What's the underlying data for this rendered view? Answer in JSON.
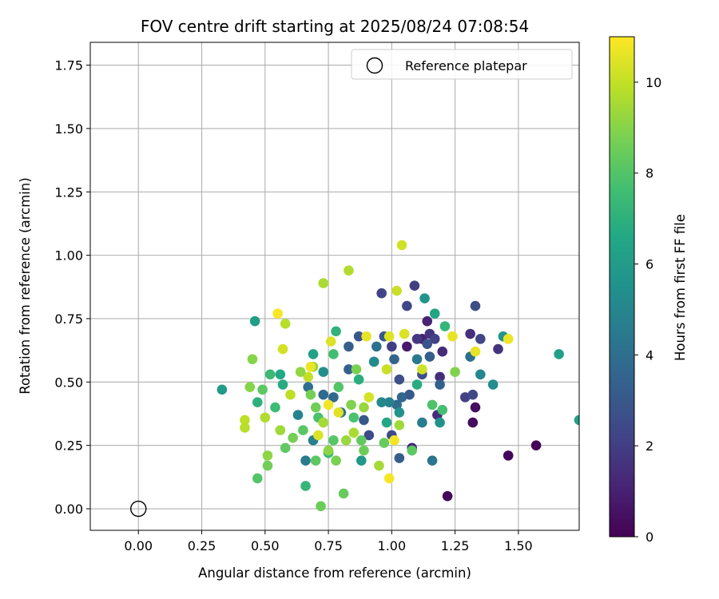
{
  "chart_data": {
    "type": "scatter",
    "title": "FOV centre drift starting at 2025/08/24 07:08:54",
    "xlabel": "Angular distance from reference (arcmin)",
    "ylabel": "Rotation from reference (arcmin)",
    "xlim": [
      -0.19,
      1.74
    ],
    "ylim": [
      -0.085,
      1.84
    ],
    "xticks": [
      "0.00",
      "0.25",
      "0.50",
      "0.75",
      "1.00",
      "1.25",
      "1.50"
    ],
    "xtick_values": [
      0,
      0.25,
      0.5,
      0.75,
      1.0,
      1.25,
      1.5
    ],
    "yticks": [
      "0.00",
      "0.25",
      "0.50",
      "0.75",
      "1.00",
      "1.25",
      "1.50",
      "1.75"
    ],
    "ytick_values": [
      0,
      0.25,
      0.5,
      0.75,
      1.0,
      1.25,
      1.5,
      1.75
    ],
    "grid": true,
    "legend": {
      "location": "top-right",
      "entries": [
        "Reference platepar"
      ]
    },
    "reference_point": {
      "x": 0.0,
      "y": 0.0,
      "marker": "open-circle"
    },
    "colorbar": {
      "label": "Hours from first FF file",
      "colormap": "viridis",
      "range": [
        0,
        11
      ],
      "tick_values": [
        0,
        2,
        4,
        6,
        8,
        10
      ],
      "ticks": [
        "0",
        "2",
        "4",
        "6",
        "8",
        "10"
      ]
    },
    "points": [
      [
        1.57,
        0.25,
        0.1
      ],
      [
        1.46,
        0.21,
        0.2
      ],
      [
        1.22,
        0.05,
        0.2
      ],
      [
        1.32,
        0.34,
        0.3
      ],
      [
        1.33,
        0.4,
        0.4
      ],
      [
        1.06,
        0.64,
        0.8
      ],
      [
        1.12,
        0.67,
        1.0
      ],
      [
        1.14,
        0.74,
        1.1
      ],
      [
        1.08,
        0.24,
        1.2
      ],
      [
        1.2,
        0.62,
        1.3
      ],
      [
        1.18,
        0.37,
        1.4
      ],
      [
        1.19,
        0.52,
        1.4
      ],
      [
        1.31,
        0.69,
        1.5
      ],
      [
        1.42,
        0.63,
        1.6
      ],
      [
        1.15,
        0.69,
        1.7
      ],
      [
        1.1,
        0.67,
        1.8
      ],
      [
        1.0,
        0.64,
        2.0
      ],
      [
        1.09,
        0.88,
        2.0
      ],
      [
        1.17,
        0.67,
        2.1
      ],
      [
        1.29,
        0.44,
        2.1
      ],
      [
        0.96,
        0.85,
        2.2
      ],
      [
        1.06,
        0.8,
        2.3
      ],
      [
        1.35,
        0.67,
        2.3
      ],
      [
        1.32,
        0.45,
        2.4
      ],
      [
        1.0,
        0.29,
        2.5
      ],
      [
        0.91,
        0.29,
        2.5
      ],
      [
        1.33,
        0.8,
        2.6
      ],
      [
        1.03,
        0.51,
        2.7
      ],
      [
        1.12,
        0.53,
        2.7
      ],
      [
        1.14,
        0.65,
        2.8
      ],
      [
        0.87,
        0.68,
        2.9
      ],
      [
        0.89,
        0.35,
        3.0
      ],
      [
        1.07,
        0.45,
        3.0
      ],
      [
        0.97,
        0.68,
        3.1
      ],
      [
        1.03,
        0.2,
        3.2
      ],
      [
        1.15,
        0.6,
        3.2
      ],
      [
        0.83,
        0.64,
        3.3
      ],
      [
        1.19,
        0.49,
        3.4
      ],
      [
        0.83,
        0.55,
        3.4
      ],
      [
        1.01,
        0.59,
        3.5
      ],
      [
        1.04,
        0.44,
        3.6
      ],
      [
        0.77,
        0.44,
        3.7
      ],
      [
        0.73,
        0.45,
        3.8
      ],
      [
        0.93,
        0.58,
        3.8
      ],
      [
        1.02,
        0.41,
        3.9
      ],
      [
        0.67,
        0.48,
        4.0
      ],
      [
        1.31,
        0.6,
        4.0
      ],
      [
        0.94,
        0.64,
        4.1
      ],
      [
        0.8,
        0.38,
        4.2
      ],
      [
        1.16,
        0.19,
        4.3
      ],
      [
        1.1,
        0.59,
        4.4
      ],
      [
        0.66,
        0.19,
        4.5
      ],
      [
        1.12,
        0.34,
        4.6
      ],
      [
        0.69,
        0.27,
        4.7
      ],
      [
        0.99,
        0.42,
        4.8
      ],
      [
        0.63,
        0.37,
        4.9
      ],
      [
        1.35,
        0.53,
        5.0
      ],
      [
        0.96,
        0.42,
        5.1
      ],
      [
        0.93,
        0.58,
        5.2
      ],
      [
        1.4,
        0.49,
        5.3
      ],
      [
        0.73,
        0.54,
        5.4
      ],
      [
        1.19,
        0.34,
        5.5
      ],
      [
        1.03,
        0.38,
        5.6
      ],
      [
        1.13,
        0.83,
        5.7
      ],
      [
        1.44,
        0.68,
        5.8
      ],
      [
        0.88,
        0.19,
        5.9
      ],
      [
        0.33,
        0.47,
        6.0
      ],
      [
        0.46,
        0.74,
        6.1
      ],
      [
        1.66,
        0.61,
        6.2
      ],
      [
        1.74,
        0.35,
        6.2
      ],
      [
        0.69,
        0.61,
        6.3
      ],
      [
        1.17,
        0.77,
        6.4
      ],
      [
        0.98,
        0.34,
        6.5
      ],
      [
        0.56,
        0.53,
        6.6
      ],
      [
        0.57,
        0.49,
        6.7
      ],
      [
        1.1,
        0.49,
        6.8
      ],
      [
        0.87,
        0.51,
        6.9
      ],
      [
        0.47,
        0.42,
        7.0
      ],
      [
        0.78,
        0.7,
        7.1
      ],
      [
        1.21,
        0.72,
        7.2
      ],
      [
        0.66,
        0.09,
        7.2
      ],
      [
        0.75,
        0.22,
        7.3
      ],
      [
        0.52,
        0.53,
        7.4
      ],
      [
        0.54,
        0.4,
        7.5
      ],
      [
        0.77,
        0.61,
        7.6
      ],
      [
        1.2,
        0.39,
        7.7
      ],
      [
        0.71,
        0.36,
        7.8
      ],
      [
        0.85,
        0.36,
        7.8
      ],
      [
        1.16,
        0.41,
        7.9
      ],
      [
        0.47,
        0.12,
        8.0
      ],
      [
        0.65,
        0.31,
        8.1
      ],
      [
        0.7,
        0.19,
        8.2
      ],
      [
        1.08,
        0.23,
        8.2
      ],
      [
        0.88,
        0.27,
        8.3
      ],
      [
        0.81,
        0.06,
        8.4
      ],
      [
        0.72,
        0.01,
        8.5
      ],
      [
        0.51,
        0.17,
        8.6
      ],
      [
        0.61,
        0.28,
        8.7
      ],
      [
        0.78,
        0.19,
        8.8
      ],
      [
        0.84,
        0.41,
        8.9
      ],
      [
        0.45,
        0.59,
        9.0
      ],
      [
        0.51,
        0.21,
        9.1
      ],
      [
        0.69,
        0.56,
        9.2
      ],
      [
        0.82,
        0.27,
        9.3
      ],
      [
        0.56,
        0.31,
        9.4
      ],
      [
        0.95,
        0.17,
        9.5
      ],
      [
        0.73,
        0.89,
        9.6
      ],
      [
        0.83,
        0.94,
        9.7
      ],
      [
        0.58,
        0.73,
        9.8
      ],
      [
        0.42,
        0.35,
        9.9
      ],
      [
        0.67,
        0.52,
        10.0
      ],
      [
        1.02,
        0.86,
        10.1
      ],
      [
        1.04,
        1.04,
        10.2
      ],
      [
        0.57,
        0.63,
        10.3
      ],
      [
        0.76,
        0.66,
        10.4
      ],
      [
        0.99,
        0.68,
        10.5
      ],
      [
        1.33,
        0.62,
        10.6
      ],
      [
        1.46,
        0.67,
        10.7
      ],
      [
        1.01,
        0.27,
        10.8
      ],
      [
        0.99,
        0.12,
        10.9
      ],
      [
        0.55,
        0.77,
        10.9
      ],
      [
        0.75,
        0.41,
        10.8
      ],
      [
        0.68,
        0.56,
        10.7
      ],
      [
        0.9,
        0.68,
        10.6
      ],
      [
        1.24,
        0.68,
        10.6
      ],
      [
        0.79,
        0.38,
        10.5
      ],
      [
        1.05,
        0.69,
        10.4
      ],
      [
        0.71,
        0.29,
        10.4
      ],
      [
        0.91,
        0.44,
        10.3
      ],
      [
        1.12,
        0.55,
        10.2
      ],
      [
        0.98,
        0.55,
        10.1
      ],
      [
        0.6,
        0.45,
        9.9
      ],
      [
        0.42,
        0.32,
        9.8
      ],
      [
        0.5,
        0.36,
        9.7
      ],
      [
        0.85,
        0.3,
        9.6
      ],
      [
        0.73,
        0.34,
        9.5
      ],
      [
        1.03,
        0.33,
        9.4
      ],
      [
        0.89,
        0.4,
        9.3
      ],
      [
        0.64,
        0.54,
        9.2
      ],
      [
        0.75,
        0.23,
        9.1
      ],
      [
        0.44,
        0.48,
        9.0
      ],
      [
        1.25,
        0.54,
        8.9
      ],
      [
        0.86,
        0.55,
        8.8
      ],
      [
        0.68,
        0.45,
        8.7
      ],
      [
        0.7,
        0.4,
        8.6
      ],
      [
        0.89,
        0.23,
        8.5
      ],
      [
        0.97,
        0.26,
        8.4
      ],
      [
        0.58,
        0.24,
        8.3
      ],
      [
        0.49,
        0.47,
        8.2
      ],
      [
        0.77,
        0.27,
        8.1
      ],
      [
        0.79,
        0.48,
        8.0
      ]
    ]
  }
}
